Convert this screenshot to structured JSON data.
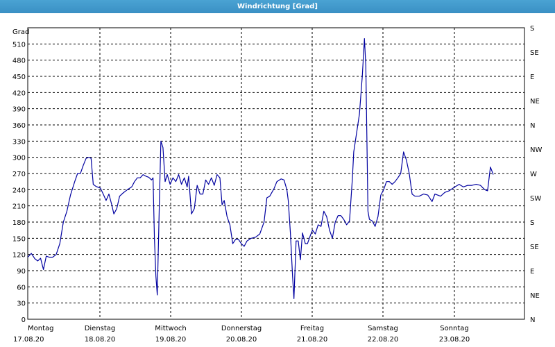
{
  "window": {
    "title": "Windrichtung [Grad]"
  },
  "chart_data": {
    "type": "line",
    "title": "Windrichtung [Grad]",
    "ylabel": "Grad",
    "ylim": [
      0,
      540
    ],
    "yticks": [
      0,
      30,
      60,
      90,
      120,
      150,
      180,
      210,
      240,
      270,
      300,
      330,
      360,
      390,
      420,
      450,
      480,
      510
    ],
    "right_axis_labels": [
      "N",
      "NE",
      "E",
      "SE",
      "S",
      "SW",
      "W",
      "NW",
      "N",
      "NE",
      "E",
      "SE",
      "S"
    ],
    "grid": true,
    "line_color": "#0000a0",
    "days": [
      {
        "day": "Montag",
        "date": "17.08.20"
      },
      {
        "day": "Dienstag",
        "date": "18.08.20"
      },
      {
        "day": "Mittwoch",
        "date": "19.08.20"
      },
      {
        "day": "Donnerstag",
        "date": "20.08.20"
      },
      {
        "day": "Freitag",
        "date": "21.08.20"
      },
      {
        "day": "Samstag",
        "date": "22.08.20"
      },
      {
        "day": "Sonntag",
        "date": "23.08.20"
      }
    ],
    "x_unit": "days since 17.08.20 00:00",
    "series": [
      {
        "points": [
          [
            0.0,
            115
          ],
          [
            0.05,
            122
          ],
          [
            0.1,
            112
          ],
          [
            0.14,
            108
          ],
          [
            0.18,
            113
          ],
          [
            0.22,
            92
          ],
          [
            0.26,
            117
          ],
          [
            0.3,
            115
          ],
          [
            0.35,
            115
          ],
          [
            0.4,
            120
          ],
          [
            0.45,
            140
          ],
          [
            0.5,
            180
          ],
          [
            0.55,
            200
          ],
          [
            0.6,
            230
          ],
          [
            0.66,
            255
          ],
          [
            0.7,
            270
          ],
          [
            0.74,
            270
          ],
          [
            0.78,
            285
          ],
          [
            0.82,
            298
          ],
          [
            0.86,
            300
          ],
          [
            0.89,
            298
          ],
          [
            0.92,
            250
          ],
          [
            0.96,
            246
          ],
          [
            1.02,
            243
          ],
          [
            1.06,
            232
          ],
          [
            1.1,
            220
          ],
          [
            1.14,
            232
          ],
          [
            1.18,
            212
          ],
          [
            1.21,
            195
          ],
          [
            1.25,
            205
          ],
          [
            1.29,
            228
          ],
          [
            1.34,
            234
          ],
          [
            1.4,
            240
          ],
          [
            1.46,
            245
          ],
          [
            1.5,
            255
          ],
          [
            1.54,
            262
          ],
          [
            1.58,
            262
          ],
          [
            1.62,
            268
          ],
          [
            1.66,
            265
          ],
          [
            1.7,
            263
          ],
          [
            1.74,
            258
          ],
          [
            1.76,
            262
          ],
          [
            1.78,
            150
          ],
          [
            1.8,
            80
          ],
          [
            1.82,
            45
          ],
          [
            1.85,
            220
          ],
          [
            1.87,
            330
          ],
          [
            1.9,
            318
          ],
          [
            1.93,
            255
          ],
          [
            1.96,
            268
          ],
          [
            2.0,
            250
          ],
          [
            2.04,
            262
          ],
          [
            2.08,
            255
          ],
          [
            2.12,
            268
          ],
          [
            2.16,
            250
          ],
          [
            2.2,
            262
          ],
          [
            2.24,
            245
          ],
          [
            2.26,
            265
          ],
          [
            2.3,
            195
          ],
          [
            2.34,
            205
          ],
          [
            2.38,
            248
          ],
          [
            2.42,
            232
          ],
          [
            2.46,
            232
          ],
          [
            2.5,
            258
          ],
          [
            2.54,
            250
          ],
          [
            2.58,
            262
          ],
          [
            2.62,
            248
          ],
          [
            2.66,
            268
          ],
          [
            2.7,
            262
          ],
          [
            2.73,
            212
          ],
          [
            2.76,
            220
          ],
          [
            2.8,
            190
          ],
          [
            2.84,
            175
          ],
          [
            2.88,
            140
          ],
          [
            2.92,
            148
          ],
          [
            2.96,
            148
          ],
          [
            3.0,
            140
          ],
          [
            3.04,
            135
          ],
          [
            3.08,
            145
          ],
          [
            3.14,
            150
          ],
          [
            3.2,
            152
          ],
          [
            3.26,
            158
          ],
          [
            3.32,
            180
          ],
          [
            3.36,
            225
          ],
          [
            3.4,
            228
          ],
          [
            3.46,
            242
          ],
          [
            3.5,
            255
          ],
          [
            3.56,
            260
          ],
          [
            3.6,
            258
          ],
          [
            3.64,
            240
          ],
          [
            3.66,
            220
          ],
          [
            3.69,
            160
          ],
          [
            3.72,
            80
          ],
          [
            3.74,
            38
          ],
          [
            3.77,
            145
          ],
          [
            3.8,
            145
          ],
          [
            3.83,
            110
          ],
          [
            3.86,
            160
          ],
          [
            3.9,
            140
          ],
          [
            3.93,
            140
          ],
          [
            3.97,
            155
          ],
          [
            4.0,
            165
          ],
          [
            4.04,
            158
          ],
          [
            4.08,
            175
          ],
          [
            4.12,
            172
          ],
          [
            4.16,
            200
          ],
          [
            4.2,
            190
          ],
          [
            4.24,
            165
          ],
          [
            4.28,
            150
          ],
          [
            4.32,
            180
          ],
          [
            4.36,
            192
          ],
          [
            4.4,
            192
          ],
          [
            4.44,
            185
          ],
          [
            4.48,
            175
          ],
          [
            4.52,
            182
          ],
          [
            4.56,
            260
          ],
          [
            4.58,
            310
          ],
          [
            4.62,
            345
          ],
          [
            4.66,
            380
          ],
          [
            4.7,
            450
          ],
          [
            4.73,
            520
          ],
          [
            4.75,
            470
          ],
          [
            4.78,
            200
          ],
          [
            4.8,
            185
          ],
          [
            4.84,
            182
          ],
          [
            4.88,
            172
          ],
          [
            4.92,
            190
          ],
          [
            4.96,
            230
          ],
          [
            5.0,
            240
          ],
          [
            5.04,
            255
          ],
          [
            5.08,
            255
          ],
          [
            5.12,
            250
          ],
          [
            5.16,
            255
          ],
          [
            5.2,
            262
          ],
          [
            5.24,
            270
          ],
          [
            5.28,
            310
          ],
          [
            5.32,
            295
          ],
          [
            5.36,
            270
          ],
          [
            5.4,
            232
          ],
          [
            5.44,
            228
          ],
          [
            5.5,
            228
          ],
          [
            5.56,
            232
          ],
          [
            5.62,
            230
          ],
          [
            5.68,
            218
          ],
          [
            5.72,
            232
          ],
          [
            5.8,
            228
          ],
          [
            5.86,
            235
          ],
          [
            5.92,
            238
          ],
          [
            6.0,
            245
          ],
          [
            6.06,
            250
          ],
          [
            6.12,
            245
          ],
          [
            6.18,
            248
          ],
          [
            6.24,
            248
          ],
          [
            6.3,
            250
          ],
          [
            6.36,
            248
          ],
          [
            6.42,
            240
          ],
          [
            6.46,
            238
          ],
          [
            6.5,
            282
          ],
          [
            6.54,
            268
          ]
        ]
      }
    ]
  }
}
